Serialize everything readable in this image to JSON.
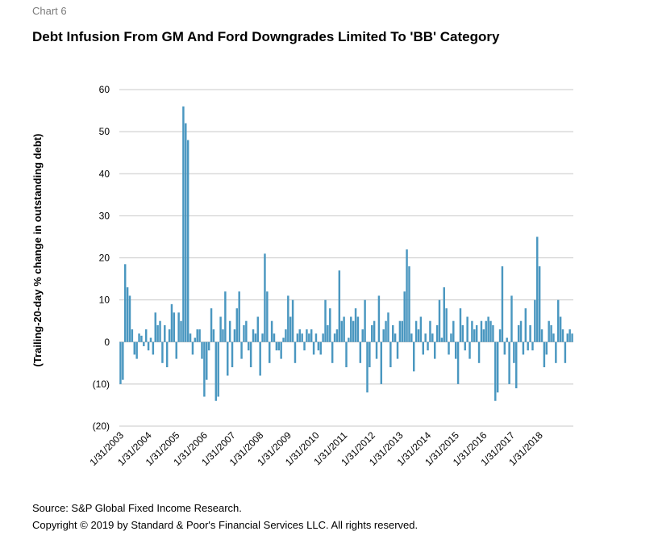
{
  "header": {
    "chart_label": "Chart 6",
    "title": "Debt Infusion From GM And Ford Downgrades Limited To 'BB' Category"
  },
  "footer": {
    "source": "Source: S&P Global Fixed Income Research.",
    "copyright": "Copyright © 2019 by Standard & Poor's Financial Services LLC. All rights reserved."
  },
  "colors": {
    "bar": "#4a97c0",
    "grid": "#c8c8c8"
  },
  "chart_data": {
    "type": "bar",
    "title": "Debt Infusion From GM And Ford Downgrades Limited To 'BB' Category",
    "xlabel": "",
    "ylabel": "(Trailing-20-day % change in outstanding debt)",
    "ylim": [
      -20,
      60
    ],
    "yticks": [
      -20,
      -10,
      0,
      10,
      20,
      30,
      40,
      50,
      60
    ],
    "ytick_labels": [
      "(20)",
      "(10)",
      "0",
      "10",
      "20",
      "30",
      "40",
      "50",
      "60"
    ],
    "xtick_labels": [
      "1/31/2003",
      "1/31/2004",
      "1/31/2005",
      "1/31/2006",
      "1/31/2007",
      "1/31/2008",
      "1/31/2009",
      "1/31/2010",
      "1/31/2011",
      "1/31/2012",
      "1/31/2013",
      "1/31/2014",
      "1/31/2015",
      "1/31/2016",
      "1/31/2017",
      "1/31/2018"
    ],
    "grid": true,
    "legend": "none",
    "series": [
      {
        "x_start": "2003-01-31",
        "frequency": "monthly",
        "values": [
          -10,
          -9,
          18.5,
          13,
          11,
          3,
          -3,
          -4,
          2,
          1.5,
          -1,
          3,
          -2,
          1,
          -3,
          7,
          4,
          5,
          -5,
          4,
          -6,
          3,
          9,
          7,
          -4,
          7,
          5,
          56,
          52,
          48,
          2,
          -3,
          1,
          3,
          3,
          -4,
          -13,
          -9,
          -2,
          8,
          3,
          -14,
          -13,
          6,
          3,
          12,
          -8,
          5,
          -6,
          3,
          8,
          12,
          -4,
          4,
          5,
          -2,
          -6,
          3,
          2,
          6,
          -8,
          2,
          21,
          12,
          -5,
          5,
          2,
          -2,
          -2,
          -4,
          1,
          3,
          11,
          6,
          10,
          -5,
          2,
          3,
          2,
          -2,
          3,
          2,
          3,
          -3,
          2,
          -2,
          -3,
          2,
          10,
          4,
          8,
          -5,
          2,
          3,
          17,
          5,
          6,
          -6,
          1,
          6,
          5,
          8,
          6,
          -5,
          3,
          10,
          -12,
          -6,
          4,
          5,
          -4,
          11,
          -10,
          3,
          5,
          7,
          -6,
          4,
          2,
          -4,
          5,
          5,
          12,
          22,
          18,
          2,
          -7,
          5,
          3,
          6,
          -3,
          2,
          -2,
          5,
          2,
          -4,
          4,
          10,
          1,
          13,
          8,
          -3,
          2,
          5,
          -4,
          -10,
          8,
          4,
          -2,
          6,
          -4,
          5,
          3,
          4,
          -5,
          5,
          3,
          5,
          6,
          5,
          4,
          -14,
          -12,
          3,
          18,
          -3,
          1,
          -10,
          11,
          -5,
          -11,
          4,
          5,
          -3,
          8,
          -2,
          4,
          -2,
          10,
          25,
          18,
          3,
          -6,
          -3,
          5,
          4,
          2,
          -5,
          10,
          6,
          3,
          -5,
          2,
          3,
          2
        ]
      }
    ]
  }
}
